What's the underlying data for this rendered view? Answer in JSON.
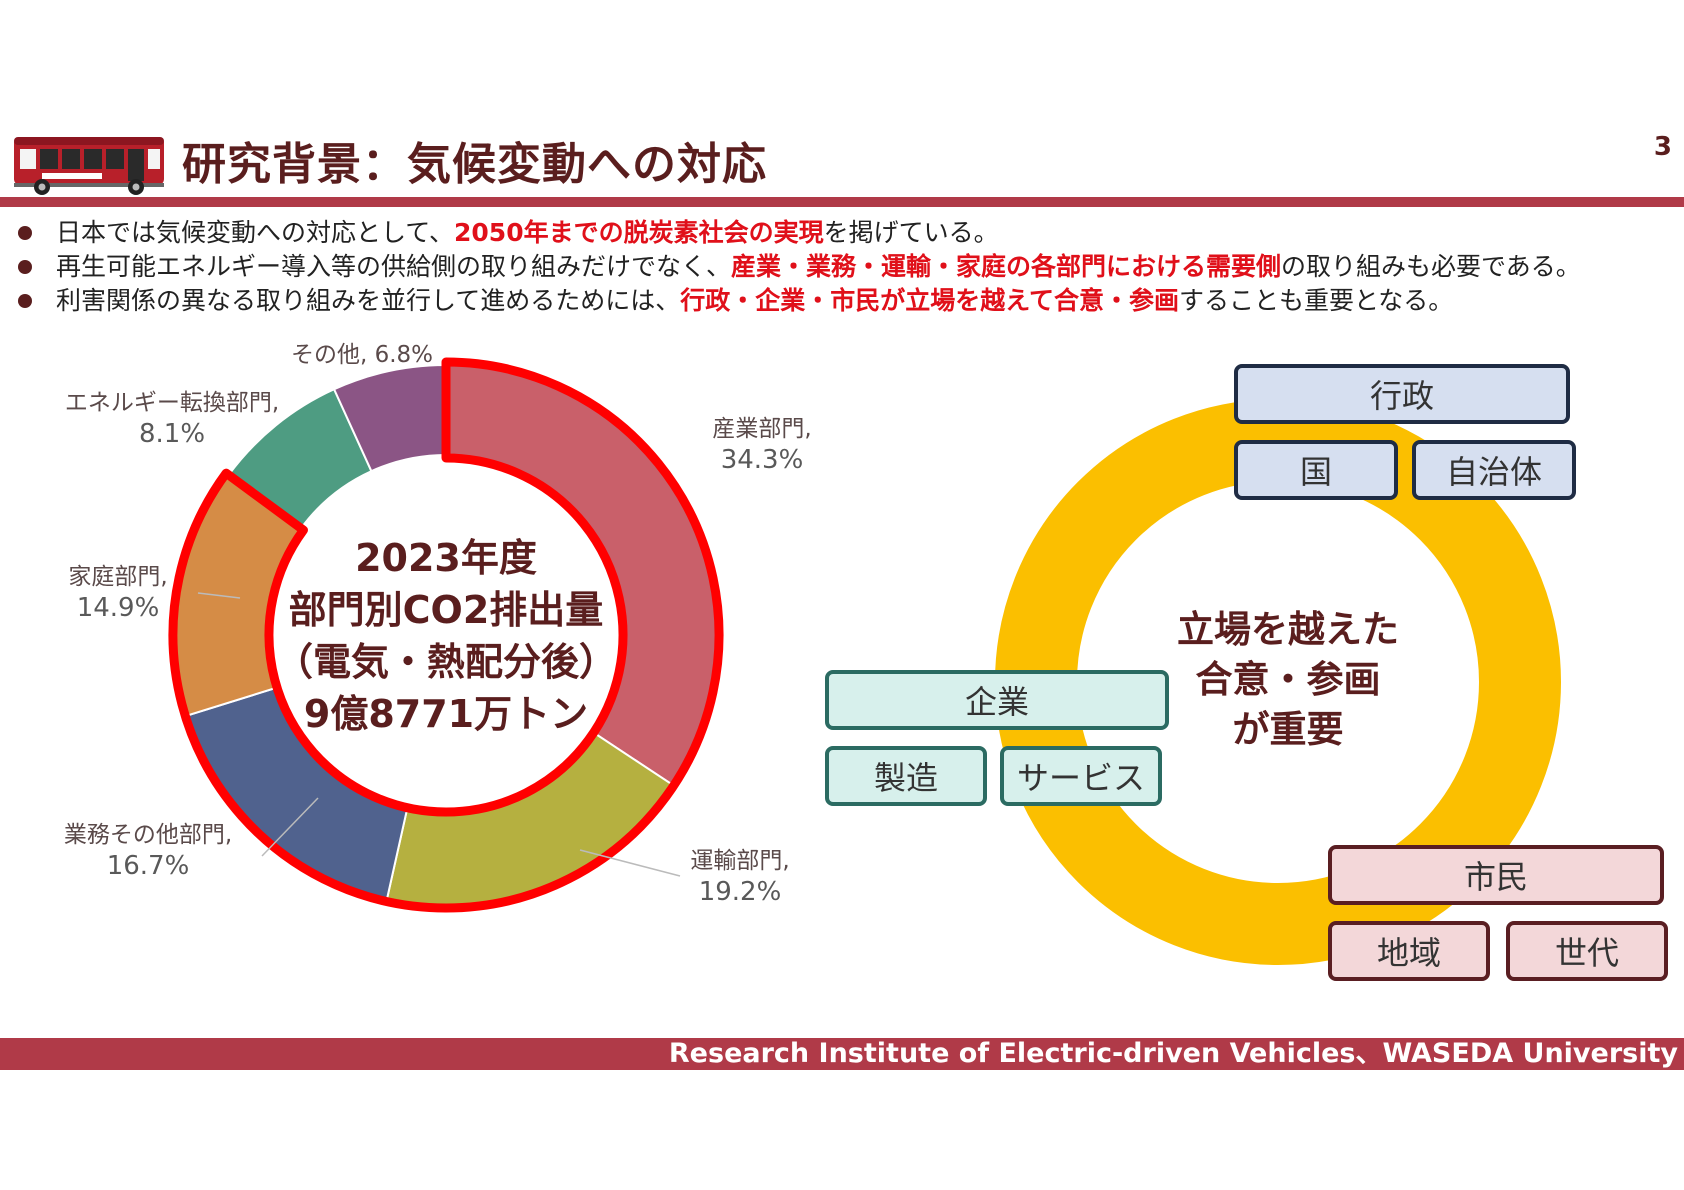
{
  "header": {
    "title": "研究背景：気候変動への対応",
    "page_number": "3"
  },
  "bullets": [
    {
      "parts": [
        {
          "text": "日本では気候変動への対応として、",
          "hl": false
        },
        {
          "text": "2050年までの脱炭素社会の実現",
          "hl": true
        },
        {
          "text": "を掲げている。",
          "hl": false
        }
      ]
    },
    {
      "parts": [
        {
          "text": "再生可能エネルギー導入等の供給側の取り組みだけでなく、",
          "hl": false
        },
        {
          "text": "産業・業務・運輸・家庭の各部門における需要側",
          "hl": true
        },
        {
          "text": "の取り組みも必要である。",
          "hl": false
        }
      ]
    },
    {
      "parts": [
        {
          "text": "利害関係の異なる取り組みを並行して進めるためには、",
          "hl": false
        },
        {
          "text": "行政・企業・市民が立場を越えて合意・参画",
          "hl": true
        },
        {
          "text": "することも重要となる。",
          "hl": false
        }
      ]
    }
  ],
  "chart_data": {
    "type": "pie",
    "variant": "donut",
    "title": "2023年度 部門別CO2排出量（電気・熱配分後） 9億8771万トン",
    "center_lines": [
      "2023年度",
      "部門別CO2排出量",
      "（電気・熱配分後）",
      "9億8771万トン"
    ],
    "slices": [
      {
        "name": "産業部門",
        "value": 34.3,
        "label_line1": "産業部門,",
        "label_line2": "34.3%",
        "color": "#c9606a"
      },
      {
        "name": "運輸部門",
        "value": 19.2,
        "label_line1": "運輸部門,",
        "label_line2": "19.2%",
        "color": "#b5b040"
      },
      {
        "name": "業務その他部門",
        "value": 16.7,
        "label_line1": "業務その他部門,",
        "label_line2": "16.7%",
        "color": "#50628e"
      },
      {
        "name": "家庭部門",
        "value": 14.9,
        "label_line1": "家庭部門,",
        "label_line2": "14.9%",
        "color": "#d58c46"
      },
      {
        "name": "エネルギー転換部門",
        "value": 8.1,
        "label_line1": "エネルギー転換部門,",
        "label_line2": "8.1%",
        "color": "#4e9c82"
      },
      {
        "name": "その他",
        "value": 6.8,
        "label_line1": "その他, 6.8%",
        "label_line2": "",
        "color": "#8b5585"
      }
    ],
    "highlighted": [
      "産業部門",
      "運輸部門",
      "業務その他部門",
      "家庭部門"
    ],
    "highlight_color": "#ff0000"
  },
  "diagram": {
    "ring_color": "#fbbf00",
    "center_lines": [
      "立場を越えた",
      "合意・参画",
      "が重要"
    ],
    "gov": {
      "main": "行政",
      "sub": [
        "国",
        "自治体"
      ]
    },
    "biz": {
      "main": "企業",
      "sub": [
        "製造",
        "サービス"
      ]
    },
    "civ": {
      "main": "市民",
      "sub": [
        "地域",
        "世代"
      ]
    }
  },
  "footer": {
    "text": "Research Institute of Electric-driven Vehicles、WASEDA University"
  }
}
